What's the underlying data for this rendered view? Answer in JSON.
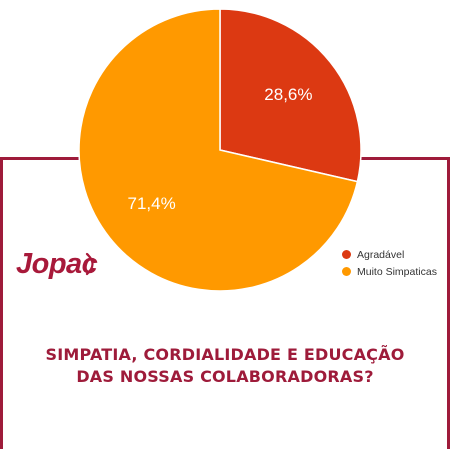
{
  "brand": {
    "logo_text": "Jopac",
    "color": "#a8193a"
  },
  "question": {
    "line1": "SIMPATIA, CORDIALIDADE E EDUCAÇÃO",
    "line2": "DAS NOSSAS COLABORADORAS?"
  },
  "chart_data": {
    "type": "pie",
    "start_angle_deg": 90,
    "slices": [
      {
        "label": "Agradável",
        "value": 28.6,
        "value_label": "28,6%",
        "color": "#dc3912"
      },
      {
        "label": "Muito Simpaticas",
        "value": 71.4,
        "value_label": "71,4%",
        "color": "#ff9900"
      }
    ],
    "legend_position": "right"
  },
  "colors": {
    "frame": "#9e1b3a",
    "background": "#ffffff"
  }
}
